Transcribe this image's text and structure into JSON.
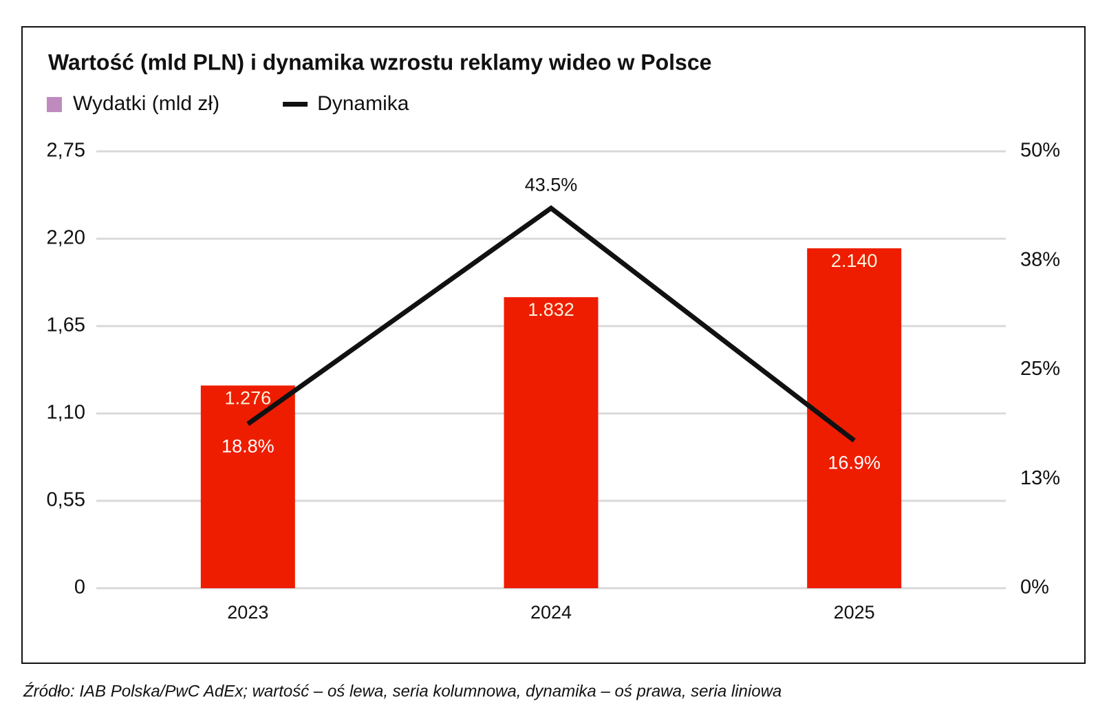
{
  "chart_data": {
    "type": "bar-line",
    "title": "Wartość (mld PLN) i dynamika wzrostu reklamy wideo w Polsce",
    "source": "Źródło: IAB Polska/PwC AdEx; wartość – oś lewa, seria kolumnowa, dynamika – oś prawa, seria liniowa",
    "categories": [
      "2023",
      "2024",
      "2025"
    ],
    "series": [
      {
        "name": "Wydatki (mld zł)",
        "type": "bar",
        "color": "#ee1d00",
        "legend_color": "#bf8bbf",
        "values": [
          1.276,
          1.832,
          2.14
        ],
        "value_labels": [
          "1.276",
          "1.832",
          "2.140"
        ]
      },
      {
        "name": "Dynamika",
        "type": "line",
        "axis": "y2",
        "color": "#111111",
        "values": [
          18.8,
          43.5,
          16.9
        ],
        "value_labels": [
          "18.8%",
          "43.5%",
          "16.9%"
        ]
      }
    ],
    "ylim": [
      0,
      2.75
    ],
    "yticks": [
      0,
      {
        "value": 0.55,
        "label": "0,55"
      },
      {
        "value": 1.1,
        "label": "1,10"
      },
      {
        "value": 1.65,
        "label": "1,65"
      },
      {
        "value": 2.2,
        "label": "2,20"
      },
      {
        "value": 2.75,
        "label": "2,75"
      }
    ],
    "y2lim": [
      0,
      50
    ],
    "y2ticks": [
      {
        "value": 0,
        "label": "0%"
      },
      {
        "value": 12.5,
        "label": "13%"
      },
      {
        "value": 25,
        "label": "25%"
      },
      {
        "value": 37.5,
        "label": "38%"
      },
      {
        "value": 50,
        "label": "50%"
      }
    ],
    "grid": true
  }
}
